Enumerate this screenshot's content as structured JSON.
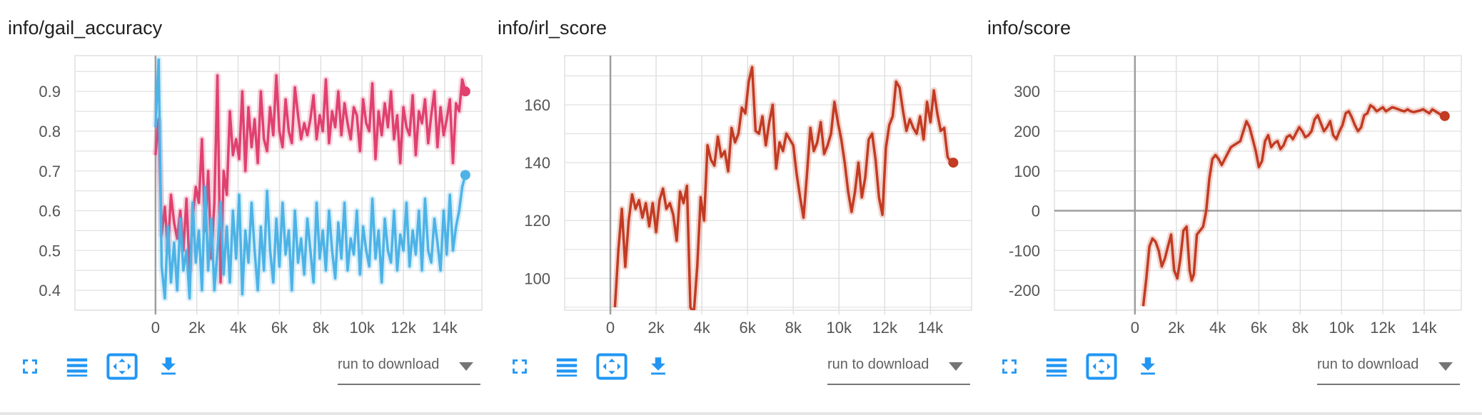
{
  "cards": [
    {
      "title": "info/gail_accuracy"
    },
    {
      "title": "info/irl_score"
    },
    {
      "title": "info/score"
    }
  ],
  "toolbar": {
    "icons": [
      "fullscreen-icon",
      "toggle-log-icon",
      "fit-domain-icon",
      "download-icon"
    ],
    "download_placeholder": "run to download"
  },
  "colors": {
    "gail_series_a": "#e0416f",
    "gail_series_b": "#4db3e6",
    "red_line": "#c23b22",
    "icon": "#2196f3",
    "grid": "#e0e0e0",
    "axis_zero": "#9e9e9e"
  },
  "chart_data": [
    {
      "type": "line",
      "title": "info/gail_accuracy",
      "xlabel": "",
      "ylabel": "",
      "xlim": [
        -3900,
        15800
      ],
      "ylim": [
        0.35,
        0.99
      ],
      "x_ticks": [
        0,
        2000,
        4000,
        6000,
        8000,
        10000,
        12000,
        14000
      ],
      "x_tick_labels": [
        "0",
        "2k",
        "4k",
        "6k",
        "8k",
        "10k",
        "12k",
        "14k"
      ],
      "y_ticks": [
        0.4,
        0.5,
        0.6,
        0.7,
        0.8,
        0.9
      ],
      "y_tick_labels": [
        "0.4",
        "0.5",
        "0.6",
        "0.7",
        "0.8",
        "0.9"
      ],
      "grid": true,
      "series": [
        {
          "color": "#e0416f",
          "x": [
            0,
            150,
            300,
            450,
            600,
            750,
            900,
            1050,
            1200,
            1350,
            1500,
            1650,
            1800,
            1950,
            2100,
            2250,
            2400,
            2550,
            2700,
            2850,
            3000,
            3150,
            3300,
            3450,
            3600,
            3750,
            3900,
            4050,
            4200,
            4350,
            4500,
            4650,
            4800,
            4950,
            5100,
            5250,
            5400,
            5550,
            5700,
            5850,
            6000,
            6150,
            6300,
            6450,
            6600,
            6750,
            6900,
            7050,
            7200,
            7350,
            7500,
            7650,
            7800,
            7950,
            8100,
            8250,
            8400,
            8550,
            8700,
            8850,
            9000,
            9150,
            9300,
            9450,
            9600,
            9750,
            9900,
            10050,
            10200,
            10350,
            10500,
            10650,
            10800,
            10950,
            11100,
            11250,
            11400,
            11550,
            11700,
            11850,
            12000,
            12150,
            12300,
            12450,
            12600,
            12750,
            12900,
            13050,
            13200,
            13350,
            13500,
            13650,
            13800,
            13950,
            14100,
            14250,
            14400,
            14550,
            14700,
            14850,
            15000
          ],
          "y": [
            0.74,
            0.83,
            0.54,
            0.61,
            0.5,
            0.64,
            0.57,
            0.53,
            0.6,
            0.5,
            0.63,
            0.45,
            0.58,
            0.66,
            0.62,
            0.78,
            0.55,
            0.7,
            0.48,
            0.62,
            0.94,
            0.42,
            0.7,
            0.64,
            0.85,
            0.74,
            0.78,
            0.73,
            0.9,
            0.7,
            0.86,
            0.76,
            0.83,
            0.72,
            0.9,
            0.78,
            0.75,
            0.86,
            0.79,
            0.94,
            0.8,
            0.76,
            0.88,
            0.8,
            0.77,
            0.91,
            0.84,
            0.78,
            0.82,
            0.79,
            0.83,
            0.89,
            0.78,
            0.84,
            0.8,
            0.93,
            0.77,
            0.85,
            0.81,
            0.9,
            0.79,
            0.87,
            0.82,
            0.78,
            0.86,
            0.84,
            0.75,
            0.88,
            0.82,
            0.8,
            0.92,
            0.73,
            0.85,
            0.79,
            0.87,
            0.81,
            0.9,
            0.78,
            0.84,
            0.72,
            0.86,
            0.81,
            0.79,
            0.89,
            0.74,
            0.85,
            0.82,
            0.88,
            0.77,
            0.84,
            0.9,
            0.76,
            0.86,
            0.79,
            0.83,
            0.88,
            0.72,
            0.87,
            0.85,
            0.93,
            0.9
          ]
        },
        {
          "color": "#4db3e6",
          "x": [
            0,
            150,
            300,
            450,
            600,
            750,
            900,
            1050,
            1200,
            1350,
            1500,
            1650,
            1800,
            1950,
            2100,
            2250,
            2400,
            2550,
            2700,
            2850,
            3000,
            3150,
            3300,
            3450,
            3600,
            3750,
            3900,
            4050,
            4200,
            4350,
            4500,
            4650,
            4800,
            4950,
            5100,
            5250,
            5400,
            5550,
            5700,
            5850,
            6000,
            6150,
            6300,
            6450,
            6600,
            6750,
            6900,
            7050,
            7200,
            7350,
            7500,
            7650,
            7800,
            7950,
            8100,
            8250,
            8400,
            8550,
            8700,
            8850,
            9000,
            9150,
            9300,
            9450,
            9600,
            9750,
            9900,
            10050,
            10200,
            10350,
            10500,
            10650,
            10800,
            10950,
            11100,
            11250,
            11400,
            11550,
            11700,
            11850,
            12000,
            12150,
            12300,
            12450,
            12600,
            12750,
            12900,
            13050,
            13200,
            13350,
            13500,
            13650,
            13800,
            13950,
            14100,
            14250,
            14400,
            14550,
            14700,
            14850,
            15000
          ],
          "y": [
            0.81,
            0.98,
            0.46,
            0.38,
            0.56,
            0.42,
            0.52,
            0.4,
            0.58,
            0.45,
            0.5,
            0.38,
            0.62,
            0.47,
            0.55,
            0.4,
            0.66,
            0.45,
            0.58,
            0.4,
            0.5,
            0.62,
            0.44,
            0.56,
            0.42,
            0.6,
            0.48,
            0.64,
            0.39,
            0.55,
            0.47,
            0.62,
            0.5,
            0.4,
            0.56,
            0.45,
            0.65,
            0.5,
            0.42,
            0.58,
            0.46,
            0.62,
            0.49,
            0.55,
            0.4,
            0.6,
            0.47,
            0.53,
            0.44,
            0.58,
            0.5,
            0.42,
            0.62,
            0.48,
            0.55,
            0.45,
            0.6,
            0.5,
            0.43,
            0.57,
            0.48,
            0.62,
            0.45,
            0.53,
            0.49,
            0.6,
            0.44,
            0.56,
            0.5,
            0.46,
            0.63,
            0.48,
            0.55,
            0.42,
            0.58,
            0.5,
            0.47,
            0.6,
            0.45,
            0.54,
            0.5,
            0.62,
            0.46,
            0.55,
            0.49,
            0.6,
            0.45,
            0.63,
            0.5,
            0.47,
            0.58,
            0.52,
            0.45,
            0.6,
            0.49,
            0.64,
            0.5,
            0.56,
            0.6,
            0.66,
            0.69
          ]
        }
      ]
    },
    {
      "type": "line",
      "title": "info/irl_score",
      "xlabel": "",
      "ylabel": "",
      "xlim": [
        -2000,
        15800
      ],
      "ylim": [
        89,
        177
      ],
      "x_ticks": [
        0,
        2000,
        4000,
        6000,
        8000,
        10000,
        12000,
        14000
      ],
      "x_tick_labels": [
        "0",
        "2k",
        "4k",
        "6k",
        "8k",
        "10k",
        "12k",
        "14k"
      ],
      "y_ticks": [
        100,
        120,
        140,
        160
      ],
      "y_tick_labels": [
        "100",
        "120",
        "140",
        "160"
      ],
      "grid": true,
      "series": [
        {
          "color": "#c23b22",
          "x": [
            200,
            350,
            500,
            650,
            800,
            950,
            1100,
            1250,
            1400,
            1550,
            1700,
            1850,
            2000,
            2150,
            2300,
            2450,
            2600,
            2750,
            2900,
            3050,
            3200,
            3350,
            3500,
            3650,
            3800,
            3950,
            4100,
            4250,
            4400,
            4550,
            4700,
            4850,
            5000,
            5150,
            5300,
            5450,
            5600,
            5750,
            5900,
            6050,
            6200,
            6350,
            6500,
            6650,
            6800,
            6950,
            7100,
            7250,
            7400,
            7550,
            7700,
            7850,
            8000,
            8150,
            8300,
            8450,
            8600,
            8750,
            8900,
            9050,
            9200,
            9350,
            9500,
            9650,
            9800,
            9950,
            10100,
            10250,
            10400,
            10550,
            10700,
            10850,
            11000,
            11150,
            11300,
            11450,
            11600,
            11750,
            11900,
            12050,
            12200,
            12350,
            12500,
            12650,
            12800,
            12950,
            13100,
            13250,
            13400,
            13550,
            13700,
            13850,
            14000,
            14150,
            14300,
            14450,
            14600,
            14750,
            14900,
            15000
          ],
          "y": [
            90,
            110,
            124,
            104,
            120,
            129,
            124,
            127,
            121,
            126,
            118,
            126,
            116,
            127,
            131,
            124,
            126,
            122,
            113,
            130,
            126,
            132,
            90,
            88,
            104,
            128,
            120,
            146,
            141,
            139,
            149,
            142,
            144,
            137,
            152,
            147,
            150,
            159,
            157,
            168,
            173,
            151,
            150,
            156,
            146,
            154,
            160,
            138,
            147,
            144,
            150,
            148,
            146,
            136,
            128,
            121,
            136,
            152,
            144,
            147,
            154,
            143,
            146,
            150,
            161,
            154,
            148,
            140,
            130,
            123,
            130,
            140,
            128,
            135,
            148,
            150,
            141,
            128,
            122,
            145,
            153,
            156,
            168,
            166,
            158,
            151,
            155,
            152,
            150,
            156,
            148,
            161,
            154,
            165,
            157,
            151,
            152,
            142,
            140,
            140
          ]
        }
      ]
    },
    {
      "type": "line",
      "title": "info/score",
      "xlabel": "",
      "ylabel": "",
      "xlim": [
        -3900,
        15800
      ],
      "ylim": [
        -250,
        390
      ],
      "x_ticks": [
        0,
        2000,
        4000,
        6000,
        8000,
        10000,
        12000,
        14000
      ],
      "x_tick_labels": [
        "0",
        "2k",
        "4k",
        "6k",
        "8k",
        "10k",
        "12k",
        "14k"
      ],
      "y_ticks": [
        -200,
        -100,
        0,
        100,
        200,
        300
      ],
      "y_tick_labels": [
        "-200",
        "-100",
        "0",
        "100",
        "200",
        "300"
      ],
      "grid": true,
      "series": [
        {
          "color": "#c23b22",
          "x": [
            400,
            550,
            700,
            850,
            1000,
            1150,
            1300,
            1450,
            1600,
            1750,
            1900,
            2050,
            2200,
            2350,
            2500,
            2650,
            2750,
            2850,
            3000,
            3150,
            3300,
            3450,
            3600,
            3750,
            3900,
            4050,
            4200,
            4350,
            4500,
            4650,
            4800,
            4950,
            5100,
            5250,
            5400,
            5550,
            5700,
            5850,
            6000,
            6150,
            6300,
            6450,
            6600,
            6750,
            6900,
            7050,
            7200,
            7350,
            7500,
            7650,
            7800,
            7950,
            8100,
            8250,
            8400,
            8550,
            8700,
            8850,
            9000,
            9150,
            9300,
            9450,
            9600,
            9750,
            9900,
            10050,
            10200,
            10350,
            10500,
            10650,
            10800,
            10950,
            11100,
            11250,
            11400,
            11550,
            11700,
            11850,
            12000,
            12150,
            12300,
            12450,
            12600,
            12750,
            12900,
            13050,
            13200,
            13350,
            13500,
            13650,
            13800,
            13950,
            14100,
            14250,
            14400,
            14550,
            14700,
            14850,
            15000
          ],
          "y": [
            -240,
            -170,
            -90,
            -70,
            -78,
            -100,
            -140,
            -120,
            -90,
            -60,
            -150,
            -170,
            -120,
            -50,
            -40,
            -150,
            -175,
            -160,
            -60,
            -50,
            -40,
            0,
            80,
            130,
            140,
            130,
            115,
            130,
            145,
            160,
            165,
            170,
            175,
            200,
            225,
            210,
            180,
            150,
            110,
            125,
            175,
            190,
            160,
            170,
            175,
            155,
            165,
            185,
            190,
            180,
            195,
            210,
            200,
            185,
            190,
            200,
            230,
            240,
            220,
            200,
            210,
            225,
            190,
            180,
            200,
            215,
            245,
            250,
            235,
            215,
            200,
            210,
            240,
            245,
            265,
            260,
            250,
            255,
            260,
            250,
            255,
            260,
            258,
            255,
            252,
            250,
            255,
            250,
            248,
            250,
            252,
            255,
            250,
            245,
            255,
            250,
            245,
            240,
            238
          ]
        }
      ]
    }
  ]
}
